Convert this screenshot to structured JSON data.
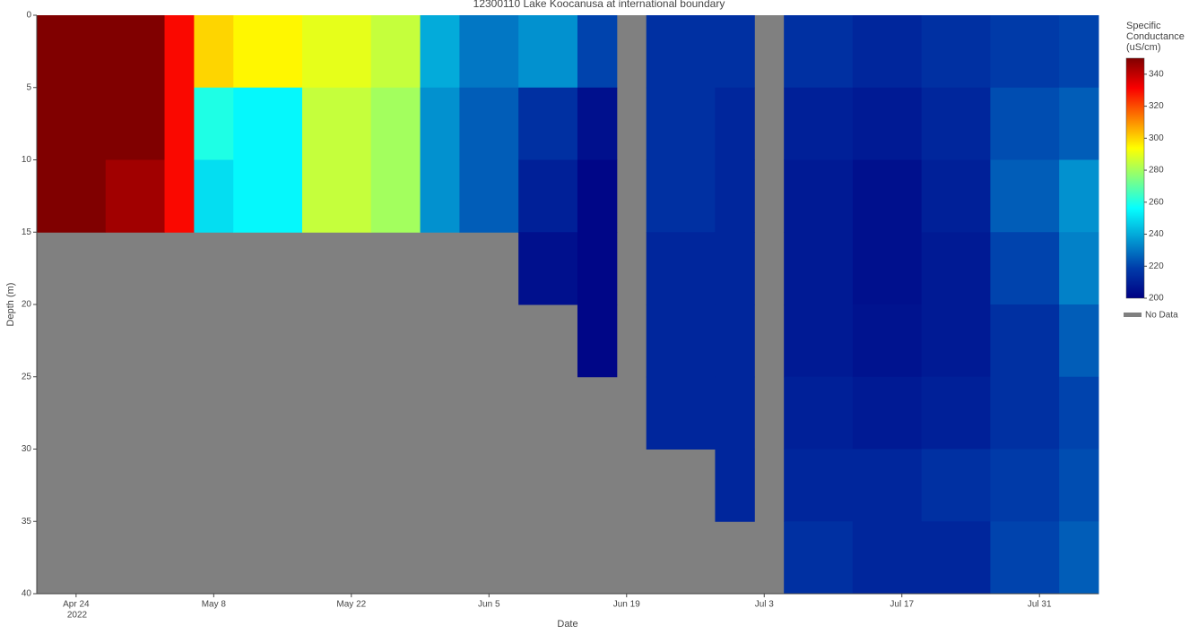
{
  "chart_data": {
    "type": "heatmap",
    "title": "12300110 Lake Koocanusa at international boundary",
    "x_label": "Date",
    "y_label": "Depth (m)",
    "xlim": [
      "2022-04-20",
      "2022-08-06"
    ],
    "xticks": [
      {
        "value": "2022-04-24",
        "label": "Apr 24"
      },
      {
        "value": "2022-05-08",
        "label": "May 8"
      },
      {
        "value": "2022-05-22",
        "label": "May 22"
      },
      {
        "value": "2022-06-05",
        "label": "Jun 5"
      },
      {
        "value": "2022-06-19",
        "label": "Jun 19"
      },
      {
        "value": "2022-07-03",
        "label": "Jul 3"
      },
      {
        "value": "2022-07-17",
        "label": "Jul 17"
      },
      {
        "value": "2022-07-31",
        "label": "Jul 31"
      }
    ],
    "x_year_label": "2022",
    "ylim": [
      0,
      40
    ],
    "yticks": [
      0,
      5,
      10,
      15,
      20,
      25,
      30,
      35,
      40
    ],
    "y_reversed": true,
    "x": [
      "2022-04-20",
      "2022-04-27",
      "2022-05-03",
      "2022-05-06",
      "2022-05-10",
      "2022-05-17",
      "2022-05-24",
      "2022-05-29",
      "2022-06-02",
      "2022-06-08",
      "2022-06-14",
      "2022-06-18",
      "2022-06-21",
      "2022-06-28",
      "2022-07-02",
      "2022-07-05",
      "2022-07-12",
      "2022-07-19",
      "2022-07-26",
      "2022-08-02"
    ],
    "y": [
      0,
      5,
      10,
      15,
      20,
      25,
      30,
      35
    ],
    "z": [
      [
        350,
        350,
        350,
        null,
        null,
        null,
        null,
        null
      ],
      [
        350,
        350,
        345,
        null,
        null,
        null,
        null,
        null
      ],
      [
        330,
        330,
        330,
        null,
        null,
        null,
        null,
        null
      ],
      [
        300,
        260,
        250,
        null,
        null,
        null,
        null,
        null
      ],
      [
        295,
        255,
        255,
        null,
        null,
        null,
        null,
        null
      ],
      [
        290,
        285,
        285,
        null,
        null,
        null,
        null,
        null
      ],
      [
        285,
        280,
        280,
        null,
        null,
        null,
        null,
        null
      ],
      [
        240,
        235,
        235,
        null,
        null,
        null,
        null,
        null
      ],
      [
        230,
        225,
        225,
        null,
        null,
        null,
        null,
        null
      ],
      [
        235,
        215,
        210,
        205,
        null,
        null,
        null,
        null
      ],
      [
        220,
        205,
        202,
        202,
        202,
        null,
        null,
        null
      ],
      [
        null,
        null,
        null,
        null,
        null,
        null,
        null,
        null
      ],
      [
        215,
        215,
        215,
        212,
        212,
        212,
        null,
        null
      ],
      [
        215,
        212,
        212,
        212,
        212,
        212,
        212,
        null
      ],
      [
        null,
        null,
        null,
        null,
        null,
        null,
        null,
        null
      ],
      [
        215,
        210,
        208,
        208,
        208,
        210,
        212,
        215
      ],
      [
        212,
        208,
        205,
        205,
        206,
        208,
        212,
        212
      ],
      [
        215,
        212,
        210,
        208,
        208,
        210,
        215,
        212
      ],
      [
        218,
        222,
        225,
        220,
        215,
        215,
        218,
        220
      ],
      [
        220,
        225,
        235,
        232,
        225,
        220,
        222,
        225
      ]
    ],
    "zlim": [
      200,
      350
    ],
    "colorbar_ticks": [
      200,
      220,
      240,
      260,
      280,
      300,
      320,
      340
    ],
    "colorbar_title": "Specific Conductance (uS/cm)",
    "colorscale": [
      [
        0,
        "#000083"
      ],
      [
        0.125,
        "#003caa"
      ],
      [
        0.375,
        "#05ffff"
      ],
      [
        0.625,
        "#ffff00"
      ],
      [
        0.875,
        "#fa0000"
      ],
      [
        1,
        "#800000"
      ]
    ],
    "nodata_label": "No Data",
    "nodata_color": "#808080"
  }
}
